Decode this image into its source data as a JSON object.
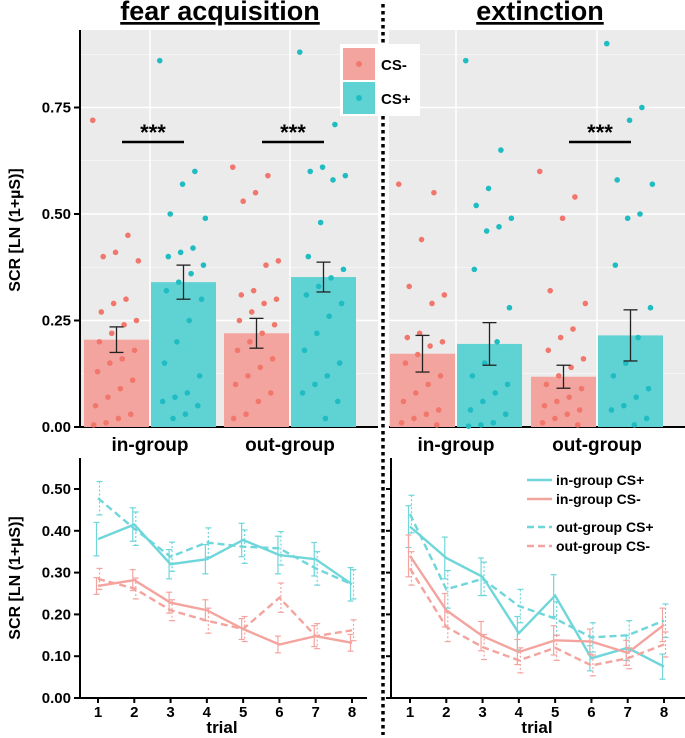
{
  "colors": {
    "cs_minus": "#f4a49e",
    "cs_plus": "#5fd2d4",
    "cs_minus_dot": "#f1776d",
    "cs_plus_dot": "#1fbcc2",
    "line_minus": "#f4a49e",
    "line_plus": "#6fd6da",
    "panel_bg": "#ebebeb",
    "grid": "#ffffff"
  },
  "panels": {
    "left_title": "fear acquisition",
    "right_title": "extinction"
  },
  "chart_data": [
    {
      "type": "bar",
      "title": "fear acquisition",
      "ylabel": "SCR [LN (1+µS)]",
      "ylim": [
        0,
        0.9
      ],
      "yticks": [
        "0.00",
        "0.25",
        "0.50",
        "0.75"
      ],
      "categories": [
        "in-group",
        "out-group"
      ],
      "legend": [
        "CS-",
        "CS+"
      ],
      "series": [
        {
          "name": "CS-",
          "values": [
            0.205,
            0.22
          ],
          "errors": [
            0.03,
            0.035
          ]
        },
        {
          "name": "CS+",
          "values": [
            0.34,
            0.352
          ],
          "errors": [
            0.04,
            0.035
          ]
        }
      ],
      "significance": [
        {
          "group": "in-group",
          "label": "***"
        },
        {
          "group": "out-group",
          "label": "***"
        }
      ],
      "points": {
        "in-group": {
          "CS-": [
            0.72,
            0.45,
            0.41,
            0.4,
            0.39,
            0.3,
            0.29,
            0.27,
            0.25,
            0.24,
            0.22,
            0.2,
            0.18,
            0.16,
            0.15,
            0.13,
            0.11,
            0.09,
            0.07,
            0.05,
            0.03,
            0.02,
            0.01,
            0.005
          ],
          "CS+": [
            0.86,
            0.6,
            0.57,
            0.5,
            0.49,
            0.42,
            0.41,
            0.4,
            0.38,
            0.36,
            0.34,
            0.32,
            0.3,
            0.25,
            0.2,
            0.15,
            0.12,
            0.08,
            0.07,
            0.06,
            0.05,
            0.03,
            0.02
          ]
        },
        "out-group": {
          "CS-": [
            0.61,
            0.59,
            0.55,
            0.53,
            0.39,
            0.38,
            0.32,
            0.31,
            0.3,
            0.29,
            0.27,
            0.25,
            0.24,
            0.22,
            0.2,
            0.18,
            0.16,
            0.14,
            0.12,
            0.1,
            0.08,
            0.06,
            0.03,
            0.02
          ],
          "CS+": [
            0.88,
            0.71,
            0.61,
            0.6,
            0.59,
            0.58,
            0.48,
            0.4,
            0.37,
            0.35,
            0.33,
            0.31,
            0.29,
            0.26,
            0.22,
            0.18,
            0.15,
            0.12,
            0.1,
            0.08,
            0.06,
            0.02
          ]
        }
      }
    },
    {
      "type": "bar",
      "title": "extinction",
      "ylim": [
        0,
        0.9
      ],
      "categories": [
        "in-group",
        "out-group"
      ],
      "series": [
        {
          "name": "CS-",
          "values": [
            0.172,
            0.118
          ],
          "errors": [
            0.043,
            0.027
          ]
        },
        {
          "name": "CS+",
          "values": [
            0.195,
            0.215
          ],
          "errors": [
            0.05,
            0.06
          ]
        }
      ],
      "significance": [
        {
          "group": "out-group",
          "label": "***"
        }
      ],
      "points": {
        "in-group": {
          "CS-": [
            0.57,
            0.55,
            0.44,
            0.33,
            0.31,
            0.29,
            0.22,
            0.21,
            0.2,
            0.19,
            0.17,
            0.15,
            0.12,
            0.1,
            0.08,
            0.06,
            0.04,
            0.03,
            0.02,
            0.01,
            0.005
          ],
          "CS+": [
            0.86,
            0.65,
            0.56,
            0.52,
            0.49,
            0.47,
            0.46,
            0.37,
            0.28,
            0.2,
            0.15,
            0.12,
            0.1,
            0.08,
            0.06,
            0.04,
            0.03,
            0.01,
            0.005,
            0.002
          ]
        },
        "out-group": {
          "CS-": [
            0.6,
            0.54,
            0.49,
            0.32,
            0.29,
            0.23,
            0.21,
            0.18,
            0.16,
            0.14,
            0.12,
            0.1,
            0.09,
            0.07,
            0.06,
            0.05,
            0.04,
            0.03,
            0.02,
            0.01,
            0.005
          ],
          "CS+": [
            0.9,
            0.75,
            0.72,
            0.58,
            0.57,
            0.5,
            0.49,
            0.38,
            0.28,
            0.21,
            0.15,
            0.12,
            0.09,
            0.07,
            0.05,
            0.04,
            0.02,
            0.005
          ]
        }
      }
    },
    {
      "type": "line",
      "title": "fear acquisition",
      "xlabel": "trial",
      "ylabel": "SCR [LN (1+µS)]",
      "x": [
        1,
        2,
        3,
        4,
        5,
        6,
        7,
        8
      ],
      "ylim": [
        0,
        0.52
      ],
      "yticks": [
        "0.00",
        "0.10",
        "0.20",
        "0.30",
        "0.40",
        "0.50"
      ],
      "series": [
        {
          "name": "in-group CS+",
          "style": "solid",
          "color": "cs_plus",
          "values": [
            0.38,
            0.415,
            0.32,
            0.332,
            0.378,
            0.342,
            0.332,
            0.272
          ],
          "errors": [
            0.04,
            0.04,
            0.035,
            0.035,
            0.04,
            0.045,
            0.04,
            0.04
          ]
        },
        {
          "name": "out-group CS+",
          "style": "dashed",
          "color": "cs_plus",
          "values": [
            0.478,
            0.405,
            0.338,
            0.372,
            0.362,
            0.358,
            0.31,
            0.272
          ],
          "errors": [
            0.04,
            0.04,
            0.035,
            0.035,
            0.04,
            0.04,
            0.04,
            0.035
          ]
        },
        {
          "name": "in-group CS-",
          "style": "solid",
          "color": "cs_minus",
          "values": [
            0.268,
            0.282,
            0.228,
            0.21,
            0.165,
            0.128,
            0.148,
            0.132
          ],
          "errors": [
            0.02,
            0.025,
            0.025,
            0.025,
            0.025,
            0.02,
            0.025,
            0.02
          ]
        },
        {
          "name": "out-group CS-",
          "style": "dashed",
          "color": "cs_minus",
          "values": [
            0.285,
            0.262,
            0.21,
            0.185,
            0.165,
            0.24,
            0.148,
            0.162
          ],
          "errors": [
            0.025,
            0.025,
            0.025,
            0.03,
            0.03,
            0.035,
            0.03,
            0.025
          ]
        }
      ]
    },
    {
      "type": "line",
      "title": "extinction",
      "xlabel": "trial",
      "x": [
        1,
        2,
        3,
        4,
        5,
        6,
        7,
        8
      ],
      "ylim": [
        0,
        0.52
      ],
      "legend": [
        "in-group CS+",
        "in-group CS-",
        "out-group CS+",
        "out-group CS-"
      ],
      "series": [
        {
          "name": "in-group CS+",
          "style": "solid",
          "color": "cs_plus",
          "values": [
            0.41,
            0.335,
            0.29,
            0.155,
            0.245,
            0.095,
            0.12,
            0.075
          ],
          "errors": [
            0.05,
            0.05,
            0.045,
            0.04,
            0.05,
            0.03,
            0.03,
            0.03
          ]
        },
        {
          "name": "in-group CS-",
          "style": "solid",
          "color": "cs_minus",
          "values": [
            0.34,
            0.21,
            0.148,
            0.11,
            0.138,
            0.135,
            0.108,
            0.175
          ],
          "errors": [
            0.05,
            0.04,
            0.035,
            0.03,
            0.035,
            0.03,
            0.03,
            0.04
          ]
        },
        {
          "name": "out-group CS+",
          "style": "dashed",
          "color": "cs_plus",
          "values": [
            0.44,
            0.26,
            0.285,
            0.22,
            0.19,
            0.145,
            0.15,
            0.185
          ],
          "errors": [
            0.045,
            0.045,
            0.04,
            0.04,
            0.04,
            0.035,
            0.035,
            0.04
          ]
        },
        {
          "name": "out-group CS-",
          "style": "dashed",
          "color": "cs_minus",
          "values": [
            0.31,
            0.17,
            0.122,
            0.09,
            0.12,
            0.078,
            0.095,
            0.128
          ],
          "errors": [
            0.04,
            0.035,
            0.03,
            0.03,
            0.03,
            0.025,
            0.025,
            0.03
          ]
        }
      ]
    }
  ]
}
